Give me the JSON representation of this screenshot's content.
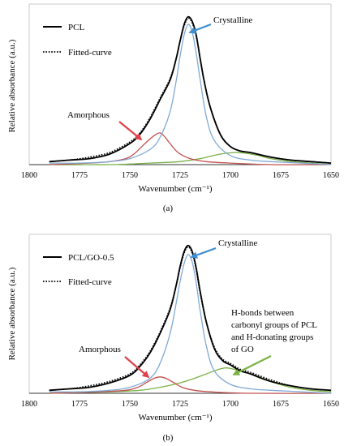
{
  "chart_data": [
    {
      "type": "line",
      "panel_label": "(a)",
      "xlabel": "Wavenumber (cm⁻¹)",
      "ylabel": "Relative absorbance (a.u.)",
      "xlim": [
        1800,
        1650
      ],
      "x_reversed": true,
      "xticks": [
        "1800",
        "1775",
        "1750",
        "1725",
        "1700",
        "1675",
        "1650"
      ],
      "ylim": [
        0,
        1
      ],
      "grid": false,
      "legend_position": "top-left",
      "legend": [
        {
          "label": "PCL",
          "style": "solid",
          "color": "#000000"
        },
        {
          "label": "Fitted-curve",
          "style": "dotted",
          "color": "#000000"
        }
      ],
      "annotations": [
        {
          "text": "Crystalline",
          "arrow_color": "#3f8fd2",
          "target": [
            1721.5,
            0.93
          ]
        },
        {
          "text": "Amorphous",
          "arrow_color": "#e0404a",
          "target": [
            1737.5,
            0.18
          ]
        }
      ],
      "series": [
        {
          "role": "measured",
          "color": "#000000",
          "style": "solid",
          "x": [
            1790,
            1780,
            1770,
            1760,
            1750,
            1745,
            1740,
            1735,
            1730,
            1727,
            1725,
            1723,
            1721,
            1719,
            1717,
            1715,
            1713,
            1710,
            1705,
            1700,
            1695,
            1690,
            1680,
            1670,
            1660,
            1650
          ],
          "y": [
            0.02,
            0.03,
            0.04,
            0.07,
            0.14,
            0.2,
            0.3,
            0.43,
            0.56,
            0.7,
            0.82,
            0.93,
            0.98,
            0.95,
            0.86,
            0.7,
            0.55,
            0.38,
            0.2,
            0.12,
            0.09,
            0.08,
            0.05,
            0.03,
            0.02,
            0.01
          ]
        },
        {
          "role": "fitted",
          "color": "#000000",
          "style": "dotted",
          "x": [
            1790,
            1780,
            1770,
            1760,
            1750,
            1745,
            1740,
            1735,
            1730,
            1727,
            1725,
            1723,
            1721,
            1719,
            1717,
            1715,
            1713,
            1710,
            1705,
            1700,
            1695,
            1690,
            1680,
            1670,
            1660,
            1650
          ],
          "y": [
            0.02,
            0.03,
            0.05,
            0.08,
            0.15,
            0.21,
            0.31,
            0.44,
            0.57,
            0.7,
            0.82,
            0.92,
            0.97,
            0.94,
            0.85,
            0.7,
            0.55,
            0.38,
            0.2,
            0.12,
            0.09,
            0.08,
            0.05,
            0.03,
            0.02,
            0.01
          ]
        },
        {
          "role": "crystalline",
          "color": "#7fa9d6",
          "style": "solid",
          "x": [
            1790,
            1775,
            1760,
            1750,
            1740,
            1735,
            1730,
            1727,
            1725,
            1723,
            1721,
            1719,
            1717,
            1715,
            1712,
            1708,
            1700,
            1690,
            1680,
            1665,
            1650
          ],
          "y": [
            0.01,
            0.01,
            0.02,
            0.04,
            0.1,
            0.18,
            0.35,
            0.55,
            0.72,
            0.86,
            0.93,
            0.88,
            0.74,
            0.56,
            0.32,
            0.16,
            0.06,
            0.03,
            0.02,
            0.01,
            0.0
          ]
        },
        {
          "role": "amorphous",
          "color": "#c0504d",
          "style": "solid",
          "x": [
            1790,
            1770,
            1760,
            1752,
            1748,
            1744,
            1740,
            1737,
            1735,
            1733,
            1730,
            1726,
            1720,
            1712,
            1700,
            1680,
            1650
          ],
          "y": [
            0.0,
            0.01,
            0.02,
            0.04,
            0.07,
            0.12,
            0.17,
            0.2,
            0.21,
            0.19,
            0.14,
            0.08,
            0.04,
            0.02,
            0.01,
            0.0,
            0.0
          ]
        },
        {
          "role": "h-bonded",
          "color": "#7bb146",
          "style": "solid",
          "x": [
            1790,
            1760,
            1740,
            1725,
            1715,
            1705,
            1698,
            1692,
            1686,
            1680,
            1670,
            1660,
            1650
          ],
          "y": [
            0.0,
            0.0,
            0.01,
            0.02,
            0.04,
            0.07,
            0.08,
            0.075,
            0.06,
            0.04,
            0.02,
            0.01,
            0.0
          ]
        }
      ]
    },
    {
      "type": "line",
      "panel_label": "(b)",
      "xlabel": "Wavenumber (cm⁻¹)",
      "ylabel": "Relative absorbance (a.u.)",
      "xlim": [
        1800,
        1650
      ],
      "x_reversed": true,
      "xticks": [
        "1800",
        "1775",
        "1750",
        "1725",
        "1700",
        "1675",
        "1650"
      ],
      "ylim": [
        0,
        1
      ],
      "grid": false,
      "legend_position": "top-left",
      "legend": [
        {
          "label": "PCL/GO-0.5",
          "style": "solid",
          "color": "#000000"
        },
        {
          "label": "Fitted-curve",
          "style": "dotted",
          "color": "#000000"
        }
      ],
      "annotations": [
        {
          "text": "Crystalline",
          "arrow_color": "#3f8fd2",
          "target": [
            1721.5,
            0.93
          ]
        },
        {
          "text": "Amorphous",
          "arrow_color": "#e0404a",
          "target": [
            1737.5,
            0.11
          ]
        },
        {
          "text": "H-bonds between carbonyl groups of PCL and H-donating groups of GO",
          "arrow_color": "#7bb146",
          "target": [
            1702,
            0.16
          ]
        }
      ],
      "series": [
        {
          "role": "measured",
          "color": "#000000",
          "style": "solid",
          "x": [
            1790,
            1780,
            1770,
            1760,
            1750,
            1745,
            1740,
            1735,
            1730,
            1727,
            1725,
            1723,
            1721,
            1719,
            1717,
            1715,
            1712,
            1708,
            1704,
            1700,
            1695,
            1690,
            1680,
            1670,
            1660,
            1650
          ],
          "y": [
            0.02,
            0.03,
            0.04,
            0.07,
            0.12,
            0.18,
            0.27,
            0.4,
            0.56,
            0.72,
            0.85,
            0.95,
            0.99,
            0.95,
            0.84,
            0.68,
            0.48,
            0.3,
            0.22,
            0.19,
            0.15,
            0.13,
            0.08,
            0.05,
            0.03,
            0.02
          ]
        },
        {
          "role": "fitted",
          "color": "#000000",
          "style": "dotted",
          "x": [
            1790,
            1780,
            1770,
            1760,
            1750,
            1745,
            1740,
            1735,
            1730,
            1727,
            1725,
            1723,
            1721,
            1719,
            1717,
            1715,
            1712,
            1708,
            1704,
            1700,
            1695,
            1690,
            1680,
            1670,
            1660,
            1650
          ],
          "y": [
            0.02,
            0.03,
            0.05,
            0.08,
            0.13,
            0.19,
            0.28,
            0.41,
            0.57,
            0.72,
            0.84,
            0.94,
            0.98,
            0.94,
            0.83,
            0.67,
            0.48,
            0.31,
            0.23,
            0.2,
            0.16,
            0.14,
            0.09,
            0.05,
            0.03,
            0.02
          ]
        },
        {
          "role": "crystalline",
          "color": "#7fa9d6",
          "style": "solid",
          "x": [
            1790,
            1775,
            1760,
            1750,
            1740,
            1735,
            1730,
            1727,
            1725,
            1723,
            1721,
            1719,
            1717,
            1715,
            1712,
            1708,
            1700,
            1690,
            1680,
            1665,
            1650
          ],
          "y": [
            0.01,
            0.01,
            0.02,
            0.04,
            0.1,
            0.2,
            0.4,
            0.6,
            0.75,
            0.87,
            0.93,
            0.88,
            0.74,
            0.55,
            0.32,
            0.15,
            0.06,
            0.03,
            0.02,
            0.01,
            0.0
          ]
        },
        {
          "role": "amorphous",
          "color": "#c0504d",
          "style": "solid",
          "x": [
            1790,
            1765,
            1752,
            1746,
            1742,
            1738,
            1735,
            1732,
            1728,
            1724,
            1718,
            1710,
            1690,
            1650
          ],
          "y": [
            0.0,
            0.01,
            0.02,
            0.04,
            0.07,
            0.1,
            0.11,
            0.1,
            0.07,
            0.04,
            0.02,
            0.01,
            0.0,
            0.0
          ]
        },
        {
          "role": "h-bonded",
          "color": "#7bb146",
          "style": "solid",
          "x": [
            1790,
            1760,
            1745,
            1735,
            1725,
            1718,
            1712,
            1706,
            1702,
            1698,
            1692,
            1685,
            1678,
            1670,
            1660,
            1650
          ],
          "y": [
            0.0,
            0.01,
            0.02,
            0.04,
            0.07,
            0.1,
            0.13,
            0.16,
            0.17,
            0.16,
            0.14,
            0.1,
            0.07,
            0.04,
            0.02,
            0.01
          ]
        }
      ]
    }
  ]
}
